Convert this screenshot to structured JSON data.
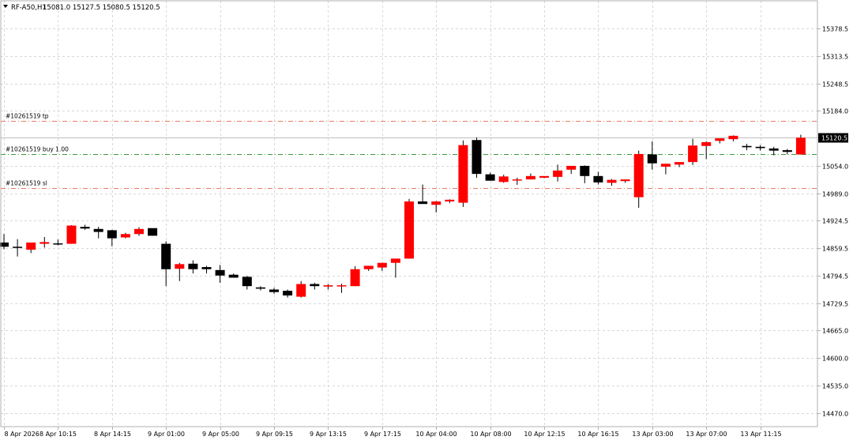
{
  "header": {
    "symbol_timeframe": "RF-A50,H1",
    "ohlc": "15081.0 15127.5 15080.5 15120.5"
  },
  "price_axis": {
    "ticks": [
      "15378.5",
      "15313.5",
      "15248.5",
      "15184.0",
      "15054.0",
      "14989.0",
      "14924.5",
      "14859.5",
      "14794.5",
      "14729.5",
      "14665.0",
      "14600.0",
      "14535.0",
      "14470.0"
    ],
    "current_price_label": "15120.5",
    "current_price_bg": "#000000"
  },
  "time_axis": {
    "labels": [
      "8 Apr 2026",
      "8 Apr 10:15",
      "8 Apr 14:15",
      "9 Apr 01:00",
      "9 Apr 05:00",
      "9 Apr 09:15",
      "9 Apr 13:15",
      "9 Apr 17:15",
      "10 Apr 04:00",
      "10 Apr 08:00",
      "10 Apr 12:15",
      "10 Apr 16:15",
      "13 Apr 03:00",
      "13 Apr 07:00",
      "13 Apr 11:15"
    ]
  },
  "order_lines": [
    {
      "label": "#10261519 tp",
      "price": 15160,
      "color": "#e87b63"
    },
    {
      "label": "#10261519 buy 1.00",
      "price": 15081,
      "color": "#3f9a3f"
    },
    {
      "label": "#10261519 sl",
      "price": 15001,
      "color": "#e87b63"
    }
  ],
  "colors": {
    "bull": "#ff0000",
    "bear": "#000000",
    "grid": "#d8d8d8",
    "axis": "#b0b0b0",
    "text": "#000000"
  },
  "chart_data": {
    "type": "candlestick",
    "title": "RF-A50,H1",
    "ylim": [
      14440,
      15440
    ],
    "grid": true,
    "candles": [
      [
        14873,
        14893,
        14857,
        14863
      ],
      [
        14863,
        14881,
        14840,
        14862
      ],
      [
        14856,
        14873,
        14848,
        14873
      ],
      [
        14870,
        14886,
        14861,
        14874
      ],
      [
        14871,
        14880,
        14866,
        14870
      ],
      [
        14870,
        14914,
        14870,
        14913
      ],
      [
        14910,
        14915,
        14903,
        14906
      ],
      [
        14905,
        14910,
        14883,
        14898
      ],
      [
        14902,
        14903,
        14864,
        14883
      ],
      [
        14885,
        14896,
        14883,
        14893
      ],
      [
        14893,
        14909,
        14889,
        14905
      ],
      [
        14907,
        14906,
        14889,
        14889
      ],
      [
        14870,
        14876,
        14770,
        14810
      ],
      [
        14811,
        14825,
        14782,
        14822
      ],
      [
        14823,
        14831,
        14800,
        14810
      ],
      [
        14815,
        14818,
        14800,
        14810
      ],
      [
        14808,
        14820,
        14778,
        14795
      ],
      [
        14797,
        14800,
        14790,
        14790
      ],
      [
        14792,
        14794,
        14762,
        14770
      ],
      [
        14767,
        14770,
        14760,
        14764
      ],
      [
        14762,
        14766,
        14752,
        14756
      ],
      [
        14759,
        14762,
        14743,
        14748
      ],
      [
        14745,
        14782,
        14743,
        14775
      ],
      [
        14775,
        14778,
        14762,
        14770
      ],
      [
        14769,
        14775,
        14762,
        14772
      ],
      [
        14772,
        14776,
        14754,
        14772
      ],
      [
        14770,
        14817,
        14770,
        14810
      ],
      [
        14810,
        14818,
        14806,
        14818
      ],
      [
        14814,
        14825,
        14806,
        14825
      ],
      [
        14825,
        14831,
        14790,
        14835
      ],
      [
        14835,
        14976,
        14835,
        14970
      ],
      [
        14970,
        15010,
        14970,
        14964
      ],
      [
        14962,
        14971,
        14944,
        14970
      ],
      [
        14970,
        14975,
        14966,
        14974
      ],
      [
        14967,
        15114,
        14957,
        15103
      ],
      [
        15115,
        15121,
        15026,
        15035
      ],
      [
        15034,
        15038,
        15019,
        15019
      ],
      [
        15016,
        15033,
        15014,
        15029
      ],
      [
        15022,
        15026,
        15009,
        15022
      ],
      [
        15022,
        15036,
        15022,
        15030
      ],
      [
        15026,
        15028,
        15025,
        15030
      ],
      [
        15028,
        15057,
        15017,
        15043
      ],
      [
        15045,
        15054,
        15035,
        15054
      ],
      [
        15054,
        15055,
        15013,
        15030
      ],
      [
        15030,
        15040,
        15010,
        15015
      ],
      [
        15014,
        15023,
        15007,
        15021
      ],
      [
        15018,
        15020,
        15014,
        15022
      ],
      [
        14980,
        15090,
        14955,
        15082
      ],
      [
        15081,
        15112,
        15045,
        15060
      ],
      [
        15052,
        15059,
        15034,
        15059
      ],
      [
        15057,
        15061,
        15051,
        15063
      ],
      [
        15063,
        15118,
        15056,
        15102
      ],
      [
        15101,
        15112,
        15070,
        15110
      ],
      [
        15113,
        15117,
        15107,
        15119
      ],
      [
        15117,
        15126,
        15112,
        15125
      ],
      [
        15101,
        15106,
        15091,
        15098
      ],
      [
        15099,
        15103,
        15090,
        15096
      ],
      [
        15095,
        15099,
        15079,
        15090
      ],
      [
        15091,
        15094,
        15081,
        15087
      ],
      [
        15081,
        15127.5,
        15080.5,
        15120.5
      ]
    ]
  }
}
